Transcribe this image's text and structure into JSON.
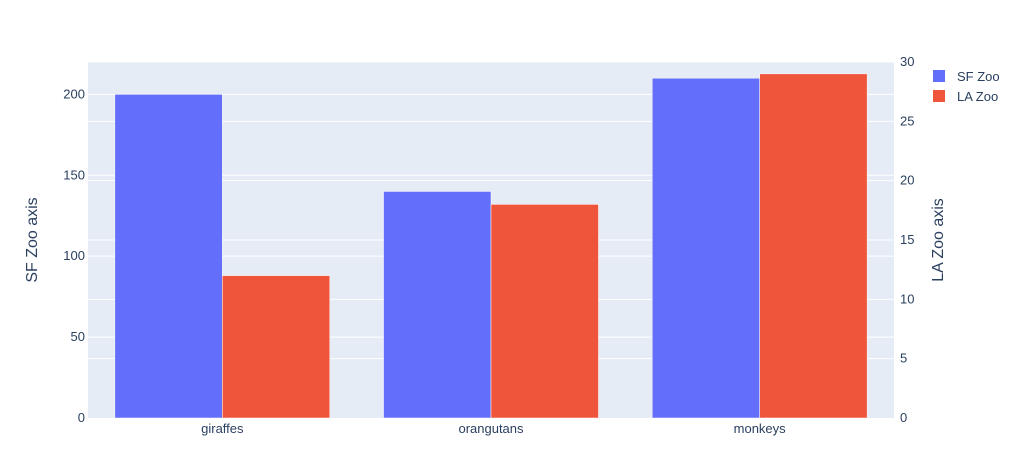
{
  "chart_data": {
    "type": "bar",
    "categories": [
      "giraffes",
      "orangutans",
      "monkeys"
    ],
    "series": [
      {
        "name": "SF Zoo",
        "values": [
          200,
          140,
          210
        ],
        "color": "#636efa",
        "axis": "left"
      },
      {
        "name": "LA Zoo",
        "values": [
          12,
          18,
          29
        ],
        "color": "#ef553b",
        "axis": "right"
      }
    ],
    "yaxis_left": {
      "title": "SF Zoo axis",
      "range": [
        0,
        220
      ],
      "ticks": [
        0,
        50,
        100,
        150,
        200
      ]
    },
    "yaxis_right": {
      "title": "LA Zoo axis",
      "range": [
        0,
        30
      ],
      "ticks": [
        0,
        5,
        10,
        15,
        20,
        25,
        30
      ]
    },
    "grid": true,
    "legend_position": "top-right",
    "plot_background": "#e5ecf6"
  }
}
